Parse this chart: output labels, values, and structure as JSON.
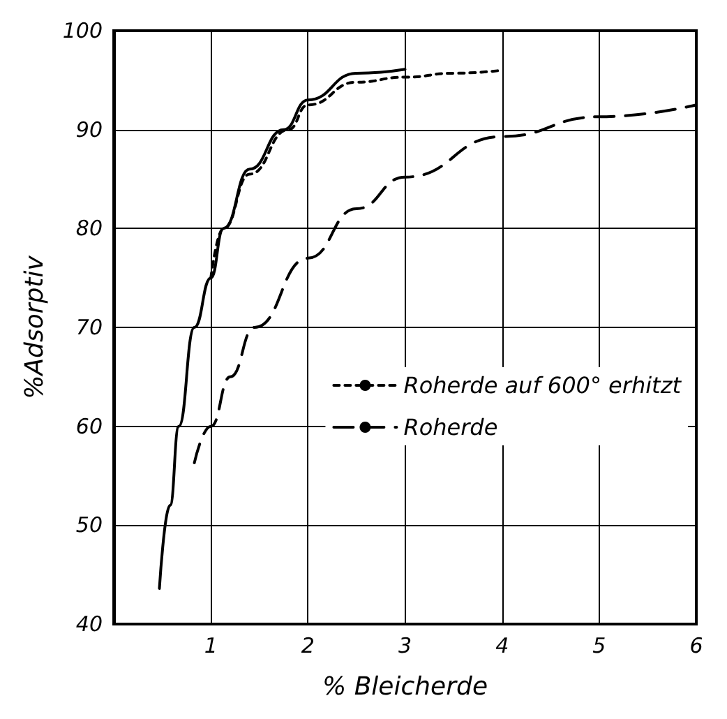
{
  "chart_data": {
    "type": "line",
    "xlabel": "% Bleicherde",
    "ylabel": "%Adsorptiv",
    "xlim": [
      0,
      6
    ],
    "ylim": [
      40,
      100
    ],
    "xticks": [
      1,
      2,
      3,
      4,
      5,
      6
    ],
    "yticks": [
      40,
      50,
      60,
      70,
      80,
      90,
      100
    ],
    "grid": true,
    "legend": "right",
    "marker": "none",
    "series": [
      {
        "color": "#000000",
        "line_style": "solid",
        "x": [
          0.47,
          0.58,
          0.67,
          0.83,
          1.0,
          1.13,
          1.4,
          1.75,
          2.0,
          2.5,
          3.0
        ],
        "values": [
          43.6,
          52,
          60,
          70,
          75,
          80,
          86,
          90,
          93,
          95.7,
          96.1
        ]
      },
      {
        "name": "Roherde auf 600° erhitzt",
        "color": "#000000",
        "line_style": "dotted",
        "x": [
          1.0,
          1.13,
          1.4,
          1.8,
          2.0,
          2.5,
          3.0,
          3.5,
          4.0
        ],
        "values": [
          75,
          80,
          85.5,
          90,
          92.5,
          94.8,
          95.3,
          95.7,
          96
        ]
      },
      {
        "name": "Roherde",
        "color": "#000000",
        "line_style": "dashed",
        "x": [
          0.83,
          1.0,
          1.2,
          1.45,
          2.0,
          2.5,
          3.0,
          4.0,
          5.0,
          6.0
        ],
        "values": [
          56.3,
          60,
          65,
          70,
          77,
          82,
          85.2,
          89.3,
          91.3,
          92.5
        ]
      }
    ]
  }
}
